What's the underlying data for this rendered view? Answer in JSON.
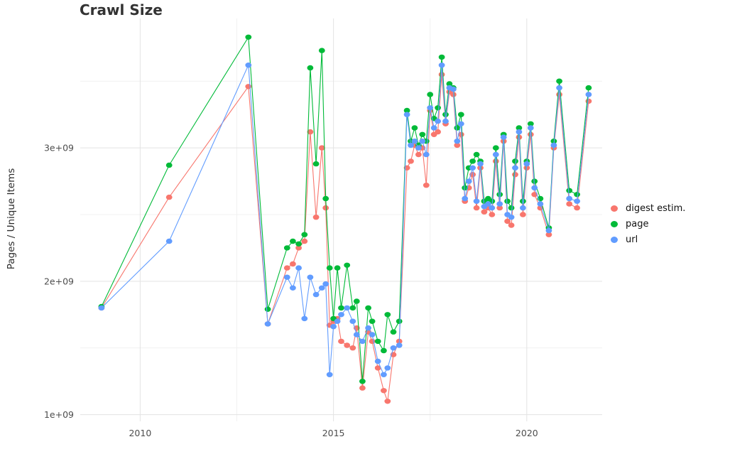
{
  "chart_data": {
    "type": "line",
    "title": "Crawl Size",
    "xlabel": "",
    "ylabel": "Pages / Unique Items",
    "grid": true,
    "legend_position": "right",
    "x_axis": {
      "ticks": [
        2010,
        2015,
        2020
      ],
      "tick_labels": [
        "2010",
        "2015",
        "2020"
      ],
      "minor_ticks": [
        2012.5,
        2017.5
      ],
      "lim": [
        2008.45,
        2021.95
      ]
    },
    "y_axis": {
      "unit": "value x 1e9 (pages / unique items)",
      "ticks": [
        1,
        2,
        3
      ],
      "tick_labels": [
        "1e+09",
        "2e+09",
        "3e+09"
      ],
      "minor_ticks": [
        1.5,
        2.5,
        3.5
      ],
      "lim": [
        0.95,
        3.97
      ]
    },
    "x": [
      2009.0,
      2010.75,
      2012.8,
      2013.3,
      2013.8,
      2013.95,
      2014.1,
      2014.25,
      2014.4,
      2014.55,
      2014.7,
      2014.8,
      2014.9,
      2015.0,
      2015.1,
      2015.2,
      2015.35,
      2015.5,
      2015.6,
      2015.75,
      2015.9,
      2016.0,
      2016.15,
      2016.3,
      2016.4,
      2016.55,
      2016.7,
      2016.9,
      2017.0,
      2017.1,
      2017.2,
      2017.3,
      2017.4,
      2017.5,
      2017.6,
      2017.7,
      2017.8,
      2017.9,
      2018.0,
      2018.1,
      2018.2,
      2018.3,
      2018.4,
      2018.5,
      2018.6,
      2018.7,
      2018.8,
      2018.9,
      2019.0,
      2019.1,
      2019.2,
      2019.3,
      2019.4,
      2019.5,
      2019.6,
      2019.7,
      2019.8,
      2019.9,
      2020.0,
      2020.1,
      2020.2,
      2020.35,
      2020.57,
      2020.7,
      2020.84,
      2021.1,
      2021.3,
      2021.6
    ],
    "series": [
      {
        "name": "digest estim.",
        "color": "#F8766D",
        "values": [
          1.8,
          2.63,
          3.46,
          1.68,
          2.1,
          2.13,
          2.25,
          2.3,
          3.12,
          2.48,
          3.0,
          2.55,
          1.67,
          1.7,
          1.72,
          1.55,
          1.52,
          1.5,
          1.65,
          1.2,
          1.62,
          1.55,
          1.35,
          1.18,
          1.1,
          1.45,
          1.55,
          2.85,
          2.9,
          3.02,
          2.95,
          3.0,
          2.72,
          3.28,
          3.1,
          3.12,
          3.55,
          3.18,
          3.42,
          3.4,
          3.02,
          3.1,
          2.6,
          2.7,
          2.8,
          2.55,
          2.85,
          2.52,
          2.55,
          2.5,
          2.9,
          2.55,
          3.05,
          2.45,
          2.42,
          2.8,
          3.08,
          2.5,
          2.85,
          3.1,
          2.65,
          2.55,
          2.35,
          3.0,
          3.4,
          2.58,
          2.55,
          3.35
        ]
      },
      {
        "name": "page",
        "color": "#00BA38",
        "values": [
          1.81,
          2.87,
          3.83,
          1.79,
          2.25,
          2.3,
          2.28,
          2.35,
          3.6,
          2.88,
          3.73,
          2.62,
          2.1,
          1.72,
          2.1,
          1.8,
          2.12,
          1.8,
          1.85,
          1.25,
          1.8,
          1.7,
          1.55,
          1.48,
          1.75,
          1.62,
          1.7,
          3.28,
          3.05,
          3.15,
          3.02,
          3.1,
          3.05,
          3.4,
          3.22,
          3.3,
          3.68,
          3.25,
          3.48,
          3.45,
          3.15,
          3.25,
          2.7,
          2.85,
          2.9,
          2.95,
          2.9,
          2.6,
          2.62,
          2.6,
          3.0,
          2.65,
          3.1,
          2.6,
          2.55,
          2.9,
          3.15,
          2.6,
          2.9,
          3.18,
          2.75,
          2.62,
          2.4,
          3.05,
          3.5,
          2.68,
          2.65,
          3.45
        ]
      },
      {
        "name": "url",
        "color": "#619CFF",
        "values": [
          1.8,
          2.3,
          3.62,
          1.68,
          2.03,
          1.95,
          2.1,
          1.72,
          2.03,
          1.9,
          1.95,
          1.98,
          1.3,
          1.66,
          1.7,
          1.75,
          1.8,
          1.7,
          1.6,
          1.55,
          1.65,
          1.6,
          1.4,
          1.3,
          1.35,
          1.5,
          1.52,
          3.25,
          3.02,
          3.05,
          3.0,
          3.05,
          2.95,
          3.3,
          3.15,
          3.2,
          3.62,
          3.2,
          3.45,
          3.44,
          3.05,
          3.18,
          2.62,
          2.75,
          2.85,
          2.6,
          2.88,
          2.56,
          2.58,
          2.55,
          2.95,
          2.58,
          3.08,
          2.5,
          2.48,
          2.85,
          3.12,
          2.55,
          2.88,
          3.15,
          2.7,
          2.58,
          2.38,
          3.02,
          3.45,
          2.62,
          2.6,
          3.4
        ]
      }
    ]
  }
}
